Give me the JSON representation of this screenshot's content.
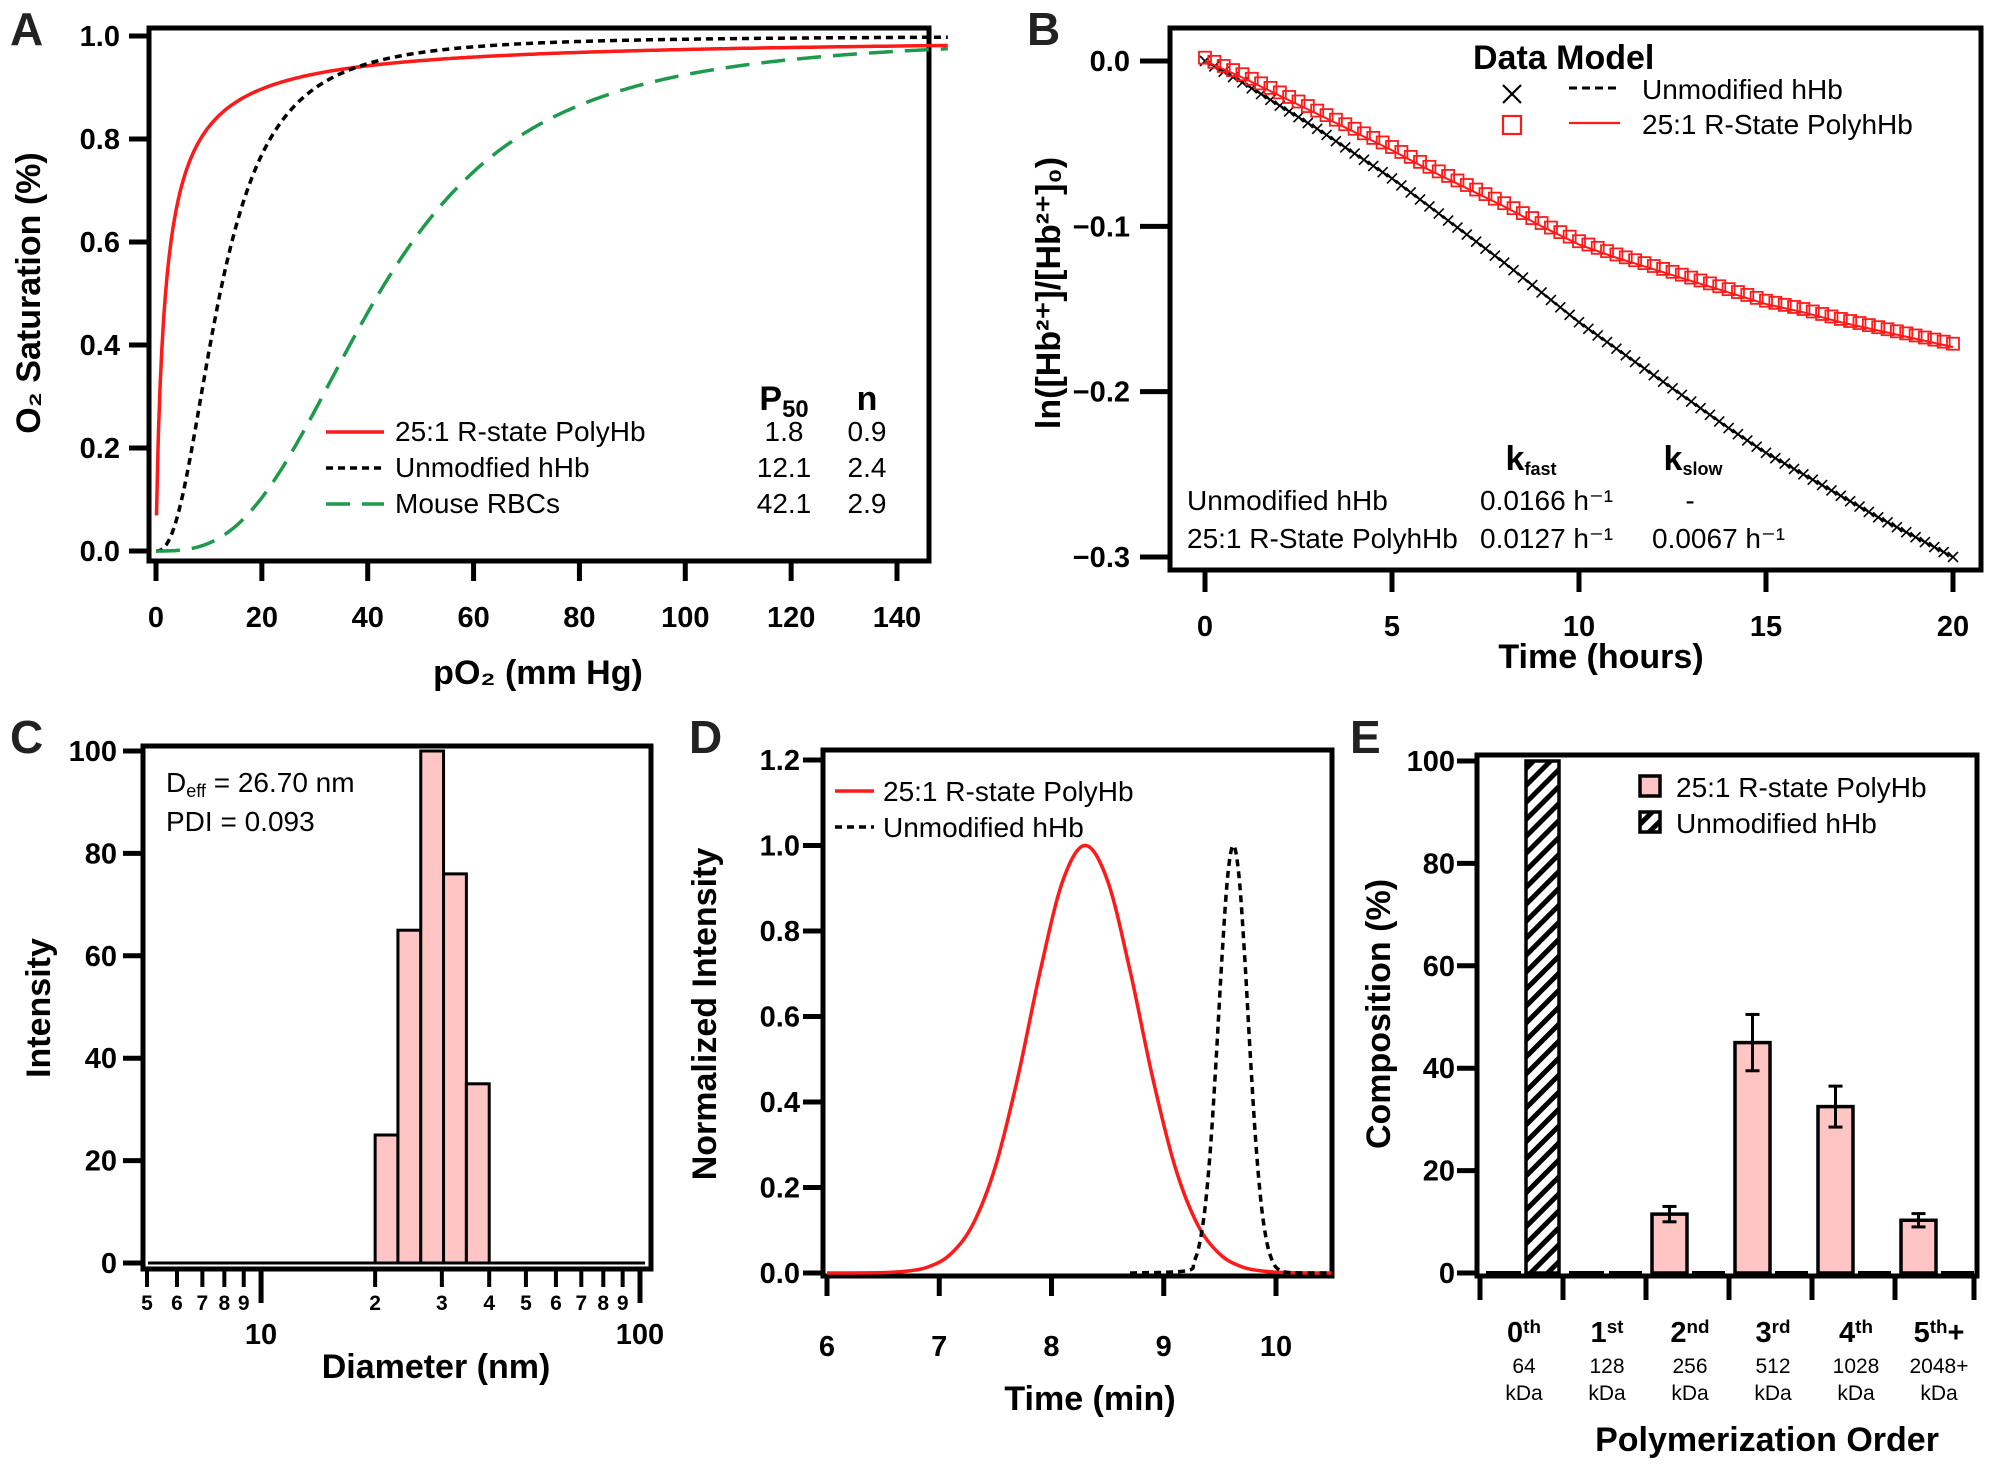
{
  "panel_labels": [
    "A",
    "B",
    "C",
    "D",
    "E"
  ],
  "chart_data": [
    {
      "panel": "A",
      "type": "line",
      "xlabel": "pO₂ (mm Hg)",
      "ylabel": "O₂ Saturation (%)",
      "xlim": [
        0,
        150
      ],
      "ylim": [
        0,
        1
      ],
      "grid": false,
      "xticks": [
        {
          "value": 0,
          "label": "0"
        },
        {
          "value": 20,
          "label": "20"
        },
        {
          "value": 40,
          "label": "40"
        },
        {
          "value": 60,
          "label": "60"
        },
        {
          "value": 80,
          "label": "80"
        },
        {
          "value": 100,
          "label": "100"
        },
        {
          "value": 120,
          "label": "120"
        },
        {
          "value": 140,
          "label": "140"
        }
      ],
      "yticks": [
        {
          "value": 0,
          "label": "0.0"
        },
        {
          "value": 0.2,
          "label": "0.2"
        },
        {
          "value": 0.4,
          "label": "0.4"
        },
        {
          "value": 0.6,
          "label": "0.6"
        },
        {
          "value": 0.8,
          "label": "0.8"
        },
        {
          "value": 1.0,
          "label": "1.0"
        }
      ],
      "legend": {
        "position": "bottom-right",
        "p50_header": {
          "main": "P",
          "sub": "50"
        },
        "n_header": "n"
      },
      "series": [
        {
          "name": "25:1 R-state PolyHb",
          "P50": "1.8",
          "n": "0.9",
          "color": "#ff1a1a",
          "style": "solid"
        },
        {
          "name": "Unmodfied hHb",
          "P50": "12.1",
          "n": "2.4",
          "color": "#000000",
          "style": "dotted"
        },
        {
          "name": "Mouse RBCs",
          "P50": "42.1",
          "n": "2.9",
          "color": "#1e9a4c",
          "style": "dashed"
        }
      ]
    },
    {
      "panel": "B",
      "type": "scatter",
      "xlabel": "Time (hours)",
      "ylabel": "ln([Hb²⁺]/[Hb²⁺]₀)",
      "xlim": [
        0,
        20
      ],
      "ylim": [
        -0.3,
        0
      ],
      "grid": false,
      "xticks": [
        {
          "value": 0,
          "label": "0"
        },
        {
          "value": 5,
          "label": "5"
        },
        {
          "value": 10,
          "label": "10"
        },
        {
          "value": 15,
          "label": "15"
        },
        {
          "value": 20,
          "label": "20"
        }
      ],
      "yticks": [
        {
          "value": 0,
          "label": "0.0"
        },
        {
          "value": -0.1,
          "label": "−0.1"
        },
        {
          "value": -0.2,
          "label": "−0.2"
        },
        {
          "value": -0.3,
          "label": "−0.3"
        }
      ],
      "legend": {
        "position": "top-right",
        "header": "Data Model"
      },
      "x": [
        0,
        1,
        2,
        3,
        4,
        5,
        6,
        7,
        8,
        9,
        10,
        11,
        12,
        13,
        14,
        15,
        16,
        17,
        18,
        19,
        20
      ],
      "series": [
        {
          "name": "Unmodified hHb",
          "marker": "x",
          "color": "#000000",
          "values": [
            0,
            -0.013,
            -0.027,
            -0.041,
            -0.056,
            -0.071,
            -0.088,
            -0.105,
            -0.122,
            -0.14,
            -0.158,
            -0.174,
            -0.19,
            -0.206,
            -0.222,
            -0.237,
            -0.25,
            -0.263,
            -0.276,
            -0.288,
            -0.3
          ]
        },
        {
          "name": "25:1 R-State PolyhHb",
          "marker": "square",
          "color": "#ff1a1a",
          "values": [
            0,
            -0.01,
            -0.021,
            -0.032,
            -0.043,
            -0.054,
            -0.066,
            -0.077,
            -0.088,
            -0.1,
            -0.111,
            -0.119,
            -0.126,
            -0.133,
            -0.14,
            -0.147,
            -0.152,
            -0.158,
            -0.163,
            -0.168,
            -0.173
          ]
        }
      ],
      "rate_table": {
        "k_fast": {
          "main": "k",
          "sub": "fast"
        },
        "k_slow": {
          "main": "k",
          "sub": "slow"
        },
        "rows": [
          {
            "name": "Unmodified hHb",
            "k_fast": "0.0166 h⁻¹",
            "k_slow": "-"
          },
          {
            "name": "25:1 R-State PolyhHb",
            "k_fast": "0.0127 h⁻¹",
            "k_slow": "0.0067 h⁻¹"
          }
        ]
      }
    },
    {
      "panel": "C",
      "type": "bar",
      "xlabel": "Diameter (nm)",
      "ylabel": "Intensity",
      "xscale": "log",
      "xlim": [
        5,
        100
      ],
      "ylim": [
        0,
        100
      ],
      "xticks_major": [
        {
          "value": 10,
          "label": "10"
        },
        {
          "value": 100,
          "label": "100"
        }
      ],
      "xticks_minor": [
        {
          "value": 5,
          "label": "5"
        },
        {
          "value": 6,
          "label": "6"
        },
        {
          "value": 7,
          "label": "7"
        },
        {
          "value": 8,
          "label": "8"
        },
        {
          "value": 9,
          "label": "9"
        },
        {
          "value": 20,
          "label": "2"
        },
        {
          "value": 30,
          "label": "3"
        },
        {
          "value": 40,
          "label": "4"
        },
        {
          "value": 50,
          "label": "5"
        },
        {
          "value": 60,
          "label": "6"
        },
        {
          "value": 70,
          "label": "7"
        },
        {
          "value": 80,
          "label": "8"
        },
        {
          "value": 90,
          "label": "9"
        }
      ],
      "yticks": [
        {
          "value": 0,
          "label": "0"
        },
        {
          "value": 20,
          "label": "20"
        },
        {
          "value": 40,
          "label": "40"
        },
        {
          "value": 60,
          "label": "60"
        },
        {
          "value": 80,
          "label": "80"
        },
        {
          "value": 100,
          "label": "100"
        }
      ],
      "bin_edges": [
        20,
        22.97,
        26.39,
        30.31,
        34.82,
        40
      ],
      "values": [
        25,
        65,
        100,
        76,
        35
      ],
      "color": "#ffc4c4",
      "annotations": {
        "deff": {
          "main": "D",
          "sub": "eff",
          "rest": " = 26.70 nm"
        },
        "pdi": "PDI = 0.093"
      }
    },
    {
      "panel": "D",
      "type": "line",
      "xlabel": "Time (min)",
      "ylabel": "Normalized Intensity",
      "xlim": [
        6,
        10.5
      ],
      "ylim": [
        0,
        1.2
      ],
      "xticks": [
        {
          "value": 6,
          "label": "6"
        },
        {
          "value": 7,
          "label": "7"
        },
        {
          "value": 8,
          "label": "8"
        },
        {
          "value": 9,
          "label": "9"
        },
        {
          "value": 10,
          "label": "10"
        }
      ],
      "yticks": [
        {
          "value": 0,
          "label": "0.0"
        },
        {
          "value": 0.2,
          "label": "0.2"
        },
        {
          "value": 0.4,
          "label": "0.4"
        },
        {
          "value": 0.6,
          "label": "0.6"
        },
        {
          "value": 0.8,
          "label": "0.8"
        },
        {
          "value": 1.0,
          "label": "1.0"
        },
        {
          "value": 1.2,
          "label": "1.2"
        }
      ],
      "legend": {
        "position": "top-left"
      },
      "series": [
        {
          "name": "25:1 R-state PolyHb",
          "color": "#ff1a1a",
          "style": "solid",
          "x": [
            6.0,
            6.5,
            6.7,
            6.9,
            7.1,
            7.3,
            7.5,
            7.7,
            7.9,
            8.1,
            8.3,
            8.5,
            8.7,
            8.9,
            9.1,
            9.3,
            9.5,
            9.7,
            9.9,
            10.1,
            10.5
          ],
          "y": [
            0,
            0.001,
            0.004,
            0.014,
            0.044,
            0.114,
            0.249,
            0.458,
            0.707,
            0.917,
            1.0,
            0.917,
            0.707,
            0.458,
            0.249,
            0.114,
            0.044,
            0.014,
            0.004,
            0.001,
            0
          ]
        },
        {
          "name": "Unmodified hHb",
          "color": "#000000",
          "style": "dotted",
          "x": [
            8.7,
            9.2,
            9.27,
            9.32,
            9.37,
            9.42,
            9.47,
            9.52,
            9.57,
            9.62,
            9.67,
            9.72,
            9.77,
            9.82,
            9.87,
            9.92,
            9.97,
            10.02,
            10.12,
            10.5
          ],
          "y": [
            0,
            0.005,
            0.027,
            0.07,
            0.157,
            0.306,
            0.514,
            0.744,
            0.929,
            1.0,
            0.929,
            0.744,
            0.514,
            0.306,
            0.157,
            0.07,
            0.027,
            0.009,
            0.001,
            0
          ]
        }
      ]
    },
    {
      "panel": "E",
      "type": "bar",
      "xlabel": "Polymerization Order",
      "ylabel": "Composition (%)",
      "ylim": [
        0,
        100
      ],
      "yticks": [
        {
          "value": 0,
          "label": "0"
        },
        {
          "value": 20,
          "label": "20"
        },
        {
          "value": 40,
          "label": "40"
        },
        {
          "value": 60,
          "label": "60"
        },
        {
          "value": 80,
          "label": "80"
        },
        {
          "value": 100,
          "label": "100"
        }
      ],
      "legend": {
        "position": "top-right"
      },
      "categories": [
        {
          "ord": "0",
          "sup": "th",
          "suffix": "",
          "mass": "64",
          "unit": "kDa"
        },
        {
          "ord": "1",
          "sup": "st",
          "suffix": "",
          "mass": "128",
          "unit": "kDa"
        },
        {
          "ord": "2",
          "sup": "nd",
          "suffix": "",
          "mass": "256",
          "unit": "kDa"
        },
        {
          "ord": "3",
          "sup": "rd",
          "suffix": "",
          "mass": "512",
          "unit": "kDa"
        },
        {
          "ord": "4",
          "sup": "th",
          "suffix": "",
          "mass": "1028",
          "unit": "kDa"
        },
        {
          "ord": "5",
          "sup": "th",
          "suffix": "+",
          "mass": "2048+",
          "unit": "kDa"
        }
      ],
      "series": [
        {
          "name": "25:1 R-state PolyHb",
          "fill": "#ffc4c4",
          "values": [
            0,
            0,
            11.5,
            45,
            32.5,
            10.3
          ],
          "errors": [
            0,
            0,
            1.5,
            5.5,
            4,
            1.3
          ]
        },
        {
          "name": "Unmodified hHb",
          "fill": "hatched",
          "values": [
            100,
            0,
            0,
            0,
            0,
            0
          ]
        }
      ]
    }
  ]
}
